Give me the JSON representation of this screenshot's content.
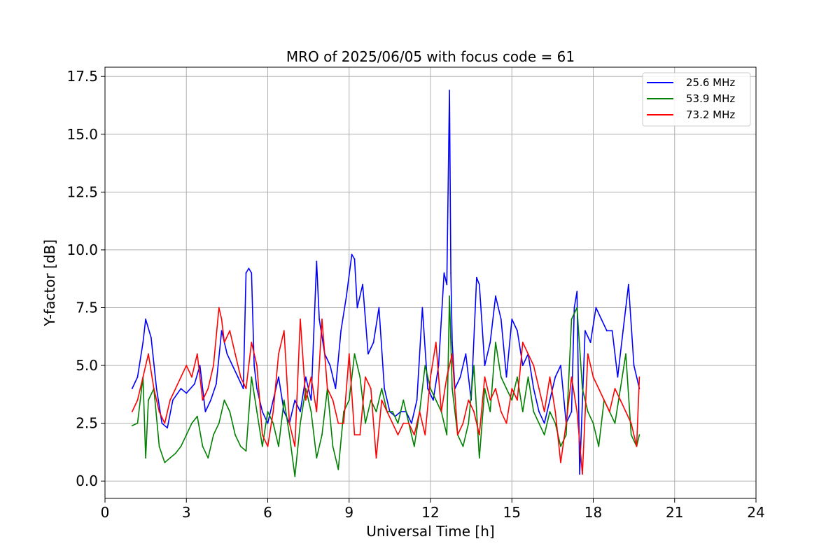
{
  "chart_data": {
    "type": "line",
    "title": "MRO of 2025/06/05 with focus code = 61",
    "xlabel": "Universal Time [h]",
    "ylabel": "Y-factor [dB]",
    "xlim": [
      0,
      24
    ],
    "ylim": [
      -0.75,
      17.9
    ],
    "xticks": [
      0,
      3,
      6,
      9,
      12,
      15,
      18,
      21,
      24
    ],
    "xtick_labels": [
      "0",
      "3",
      "6",
      "9",
      "12",
      "15",
      "18",
      "21",
      "24"
    ],
    "yticks": [
      0,
      2.5,
      5,
      7.5,
      10,
      12.5,
      15,
      17.5
    ],
    "ytick_labels": [
      "0.0",
      "2.5",
      "5.0",
      "7.5",
      "10.0",
      "12.5",
      "15.0",
      "17.5"
    ],
    "grid": true,
    "legend_position": "top-right",
    "series": [
      {
        "name": "25.6 MHz",
        "color": "#0000ff",
        "x": [
          1.0,
          1.2,
          1.4,
          1.5,
          1.7,
          1.9,
          2.1,
          2.3,
          2.5,
          2.8,
          3.0,
          3.3,
          3.5,
          3.7,
          3.9,
          4.1,
          4.3,
          4.5,
          4.7,
          4.9,
          5.1,
          5.2,
          5.3,
          5.4,
          5.5,
          5.6,
          5.8,
          6.0,
          6.2,
          6.4,
          6.6,
          6.8,
          7.0,
          7.2,
          7.4,
          7.6,
          7.8,
          7.9,
          8.1,
          8.3,
          8.5,
          8.7,
          8.9,
          9.1,
          9.2,
          9.3,
          9.5,
          9.7,
          9.9,
          10.1,
          10.3,
          10.5,
          10.7,
          10.9,
          11.1,
          11.3,
          11.5,
          11.7,
          11.9,
          12.1,
          12.3,
          12.5,
          12.6,
          12.7,
          12.75,
          12.8,
          12.9,
          13.1,
          13.3,
          13.5,
          13.7,
          13.8,
          14.0,
          14.2,
          14.4,
          14.6,
          14.8,
          15.0,
          15.2,
          15.4,
          15.6,
          15.8,
          16.0,
          16.2,
          16.4,
          16.6,
          16.8,
          17.0,
          17.2,
          17.3,
          17.4,
          17.5,
          17.7,
          17.9,
          18.1,
          18.3,
          18.5,
          18.7,
          18.9,
          19.1,
          19.3,
          19.5,
          19.7
        ],
        "y": [
          4.0,
          4.5,
          6.0,
          7.0,
          6.2,
          4.0,
          2.5,
          2.3,
          3.5,
          4.0,
          3.8,
          4.2,
          5.0,
          3.0,
          3.5,
          4.2,
          6.5,
          5.5,
          5.0,
          4.5,
          4.0,
          9.0,
          9.2,
          9.0,
          5.0,
          4.0,
          3.0,
          2.5,
          3.5,
          4.5,
          3.0,
          2.5,
          3.5,
          3.0,
          4.5,
          3.5,
          9.5,
          7.0,
          5.5,
          5.0,
          4.0,
          6.5,
          8.0,
          9.8,
          9.6,
          7.5,
          8.5,
          5.5,
          6.0,
          7.5,
          4.0,
          3.0,
          2.8,
          3.0,
          3.0,
          2.5,
          3.5,
          7.5,
          4.0,
          3.5,
          5.0,
          9.0,
          8.5,
          16.9,
          9.0,
          6.0,
          4.0,
          4.5,
          5.5,
          3.5,
          8.8,
          8.5,
          5.0,
          6.0,
          8.0,
          7.0,
          4.5,
          7.0,
          6.5,
          5.0,
          5.5,
          4.0,
          3.0,
          2.5,
          3.5,
          4.5,
          5.0,
          2.5,
          3.0,
          7.5,
          8.2,
          0.3,
          6.5,
          6.0,
          7.5,
          7.0,
          6.5,
          6.5,
          4.5,
          6.5,
          8.5,
          5.0,
          4.0
        ]
      },
      {
        "name": "53.9 MHz",
        "color": "#008000",
        "x": [
          1.0,
          1.2,
          1.3,
          1.4,
          1.5,
          1.6,
          1.8,
          2.0,
          2.2,
          2.4,
          2.6,
          2.8,
          3.0,
          3.2,
          3.4,
          3.6,
          3.8,
          4.0,
          4.2,
          4.4,
          4.6,
          4.8,
          5.0,
          5.2,
          5.4,
          5.6,
          5.8,
          6.0,
          6.2,
          6.4,
          6.6,
          6.8,
          7.0,
          7.2,
          7.4,
          7.6,
          7.8,
          8.0,
          8.2,
          8.4,
          8.6,
          8.8,
          9.0,
          9.2,
          9.4,
          9.6,
          9.8,
          10.0,
          10.2,
          10.4,
          10.6,
          10.8,
          11.0,
          11.2,
          11.4,
          11.6,
          11.8,
          12.0,
          12.2,
          12.4,
          12.6,
          12.7,
          12.8,
          13.0,
          13.2,
          13.4,
          13.6,
          13.8,
          14.0,
          14.2,
          14.4,
          14.6,
          14.8,
          15.0,
          15.2,
          15.4,
          15.6,
          15.8,
          16.0,
          16.2,
          16.4,
          16.6,
          16.8,
          17.0,
          17.2,
          17.4,
          17.6,
          17.8,
          18.0,
          18.2,
          18.4,
          18.6,
          18.8,
          19.0,
          19.2,
          19.4,
          19.6,
          19.7
        ],
        "y": [
          2.4,
          2.5,
          3.5,
          4.5,
          1.0,
          3.5,
          4.0,
          1.5,
          0.8,
          1.0,
          1.2,
          1.5,
          2.0,
          2.5,
          2.8,
          1.5,
          1.0,
          2.0,
          2.5,
          3.5,
          3.0,
          2.0,
          1.5,
          1.3,
          4.5,
          3.0,
          1.5,
          3.0,
          2.5,
          1.5,
          3.5,
          2.0,
          0.2,
          2.5,
          4.0,
          3.0,
          1.0,
          2.0,
          4.0,
          1.5,
          0.5,
          3.0,
          3.5,
          5.5,
          4.5,
          2.5,
          3.5,
          3.0,
          4.0,
          3.0,
          3.0,
          2.5,
          3.5,
          2.5,
          1.5,
          3.0,
          5.0,
          4.0,
          3.5,
          3.0,
          2.0,
          8.0,
          4.0,
          2.0,
          1.5,
          2.5,
          5.0,
          1.0,
          4.0,
          3.0,
          6.0,
          4.5,
          4.0,
          3.5,
          4.5,
          3.0,
          4.5,
          3.0,
          2.5,
          2.0,
          3.0,
          2.5,
          1.5,
          2.0,
          7.0,
          7.5,
          4.0,
          3.0,
          2.5,
          1.5,
          3.5,
          3.0,
          2.5,
          4.0,
          5.5,
          2.0,
          1.5,
          2.0
        ]
      },
      {
        "name": "73.2 MHz",
        "color": "#ff0000",
        "x": [
          1.0,
          1.2,
          1.4,
          1.6,
          1.8,
          2.0,
          2.2,
          2.4,
          2.6,
          2.8,
          3.0,
          3.2,
          3.4,
          3.6,
          3.8,
          4.0,
          4.2,
          4.3,
          4.4,
          4.6,
          4.8,
          5.0,
          5.2,
          5.4,
          5.6,
          5.8,
          6.0,
          6.2,
          6.4,
          6.6,
          6.8,
          7.0,
          7.2,
          7.4,
          7.6,
          7.8,
          8.0,
          8.2,
          8.4,
          8.6,
          8.8,
          9.0,
          9.2,
          9.4,
          9.6,
          9.8,
          10.0,
          10.2,
          10.4,
          10.6,
          10.8,
          11.0,
          11.2,
          11.4,
          11.6,
          11.8,
          12.0,
          12.2,
          12.4,
          12.6,
          12.8,
          13.0,
          13.2,
          13.4,
          13.6,
          13.8,
          14.0,
          14.2,
          14.4,
          14.6,
          14.8,
          15.0,
          15.2,
          15.4,
          15.6,
          15.8,
          16.0,
          16.2,
          16.4,
          16.6,
          16.8,
          17.0,
          17.2,
          17.4,
          17.6,
          17.8,
          18.0,
          18.2,
          18.4,
          18.6,
          18.8,
          19.0,
          19.2,
          19.4,
          19.6,
          19.7
        ],
        "y": [
          3.0,
          3.5,
          4.5,
          5.5,
          4.0,
          3.0,
          2.5,
          3.5,
          4.0,
          4.5,
          5.0,
          4.5,
          5.5,
          3.5,
          4.0,
          5.0,
          7.5,
          7.0,
          6.0,
          6.5,
          5.5,
          4.5,
          4.0,
          6.0,
          5.0,
          2.0,
          1.5,
          3.0,
          5.5,
          6.5,
          2.5,
          1.5,
          7.0,
          3.5,
          4.5,
          3.0,
          7.0,
          4.0,
          3.5,
          2.5,
          2.5,
          5.5,
          2.0,
          2.0,
          4.5,
          4.0,
          1.0,
          3.5,
          3.0,
          2.5,
          2.0,
          2.5,
          2.5,
          2.0,
          3.0,
          2.0,
          4.5,
          6.0,
          3.0,
          4.5,
          5.5,
          2.0,
          2.5,
          3.5,
          3.0,
          2.0,
          4.5,
          3.5,
          4.0,
          3.0,
          2.5,
          4.0,
          3.5,
          6.0,
          5.5,
          5.0,
          4.0,
          3.0,
          4.5,
          3.0,
          0.8,
          2.5,
          4.5,
          3.0,
          0.3,
          5.5,
          4.5,
          4.0,
          3.5,
          3.0,
          4.0,
          3.5,
          3.0,
          2.5,
          1.5,
          4.5
        ]
      }
    ]
  }
}
